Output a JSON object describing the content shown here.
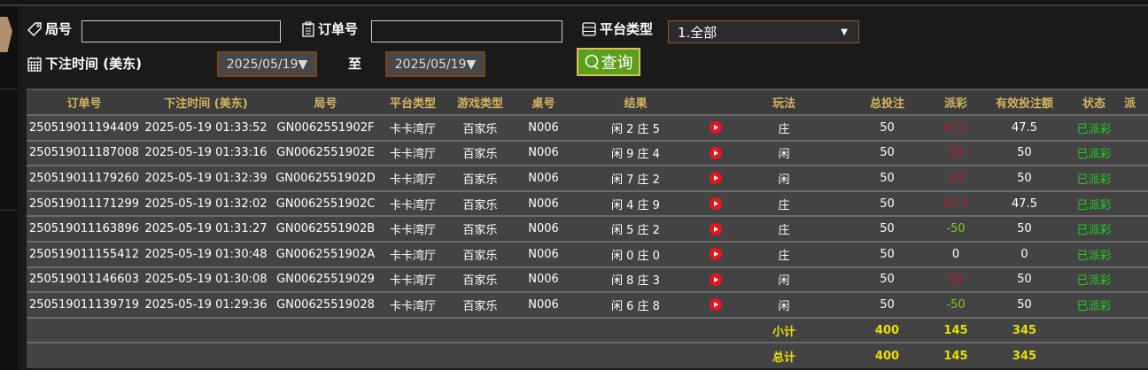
{
  "filters": {
    "round_label": "局号",
    "round_value": "",
    "order_label": "订单号",
    "order_value": "",
    "platform_label": "平台类型",
    "platform_selected": "1.全部",
    "time_label": "下注时间 (美东)",
    "date_from": "2025/05/19▼",
    "to_label": "至",
    "date_to": "2025/05/19▼",
    "query_label": "查询"
  },
  "table": {
    "headers": [
      "订单号",
      "下注时间 (美东)",
      "局号",
      "平台类型",
      "游戏类型",
      "桌号",
      "结果",
      "",
      "玩法",
      "总投注",
      "派彩",
      "有效投注额",
      "状态",
      "派"
    ],
    "rows": [
      {
        "order": "250519011194409",
        "time": "2025-05-19 01:33:52",
        "round": "GN0062551902F",
        "platform": "卡卡湾厅",
        "game": "百家乐",
        "table": "N006",
        "result": "闲 2 庄 5",
        "play": "庄",
        "bet": "50",
        "payout": "47.5",
        "payout_color": "red",
        "valid": "47.5",
        "status": "已派彩"
      },
      {
        "order": "250519011187008",
        "time": "2025-05-19 01:33:16",
        "round": "GN0062551902E",
        "platform": "卡卡湾厅",
        "game": "百家乐",
        "table": "N006",
        "result": "闲 9 庄 4",
        "play": "闲",
        "bet": "50",
        "payout": "50",
        "payout_color": "red",
        "valid": "50",
        "status": "已派彩"
      },
      {
        "order": "250519011179260",
        "time": "2025-05-19 01:32:39",
        "round": "GN0062551902D",
        "platform": "卡卡湾厅",
        "game": "百家乐",
        "table": "N006",
        "result": "闲 7 庄 2",
        "play": "闲",
        "bet": "50",
        "payout": "50",
        "payout_color": "red",
        "valid": "50",
        "status": "已派彩"
      },
      {
        "order": "250519011171299",
        "time": "2025-05-19 01:32:02",
        "round": "GN0062551902C",
        "platform": "卡卡湾厅",
        "game": "百家乐",
        "table": "N006",
        "result": "闲 4 庄 9",
        "play": "庄",
        "bet": "50",
        "payout": "47.5",
        "payout_color": "red",
        "valid": "47.5",
        "status": "已派彩"
      },
      {
        "order": "250519011163896",
        "time": "2025-05-19 01:31:27",
        "round": "GN0062551902B",
        "platform": "卡卡湾厅",
        "game": "百家乐",
        "table": "N006",
        "result": "闲 5 庄 2",
        "play": "庄",
        "bet": "50",
        "payout": "-50",
        "payout_color": "green",
        "valid": "50",
        "status": "已派彩"
      },
      {
        "order": "250519011155412",
        "time": "2025-05-19 01:30:48",
        "round": "GN0062551902A",
        "platform": "卡卡湾厅",
        "game": "百家乐",
        "table": "N006",
        "result": "闲 0 庄 0",
        "play": "庄",
        "bet": "50",
        "payout": "0",
        "payout_color": "white",
        "valid": "0",
        "status": "已派彩"
      },
      {
        "order": "250519011146603",
        "time": "2025-05-19 01:30:08",
        "round": "GN00625519029",
        "platform": "卡卡湾厅",
        "game": "百家乐",
        "table": "N006",
        "result": "闲 8 庄 3",
        "play": "闲",
        "bet": "50",
        "payout": "50",
        "payout_color": "red",
        "valid": "50",
        "status": "已派彩"
      },
      {
        "order": "250519011139719",
        "time": "2025-05-19 01:29:36",
        "round": "GN00625519028",
        "platform": "卡卡湾厅",
        "game": "百家乐",
        "table": "N006",
        "result": "闲 6 庄 8",
        "play": "闲",
        "bet": "50",
        "payout": "-50",
        "payout_color": "green",
        "valid": "50",
        "status": "已派彩"
      }
    ],
    "subtotal": {
      "label": "小计",
      "bet": "400",
      "payout": "145",
      "valid": "345"
    },
    "total": {
      "label": "总计",
      "bet": "400",
      "payout": "145",
      "valid": "345"
    }
  },
  "colors": {
    "header_text": "#d4b460",
    "red": "#b0182a",
    "green": "#7ccc20",
    "status": "#22cc22",
    "total": "#e8e000",
    "query_button": "#5aa01a"
  }
}
